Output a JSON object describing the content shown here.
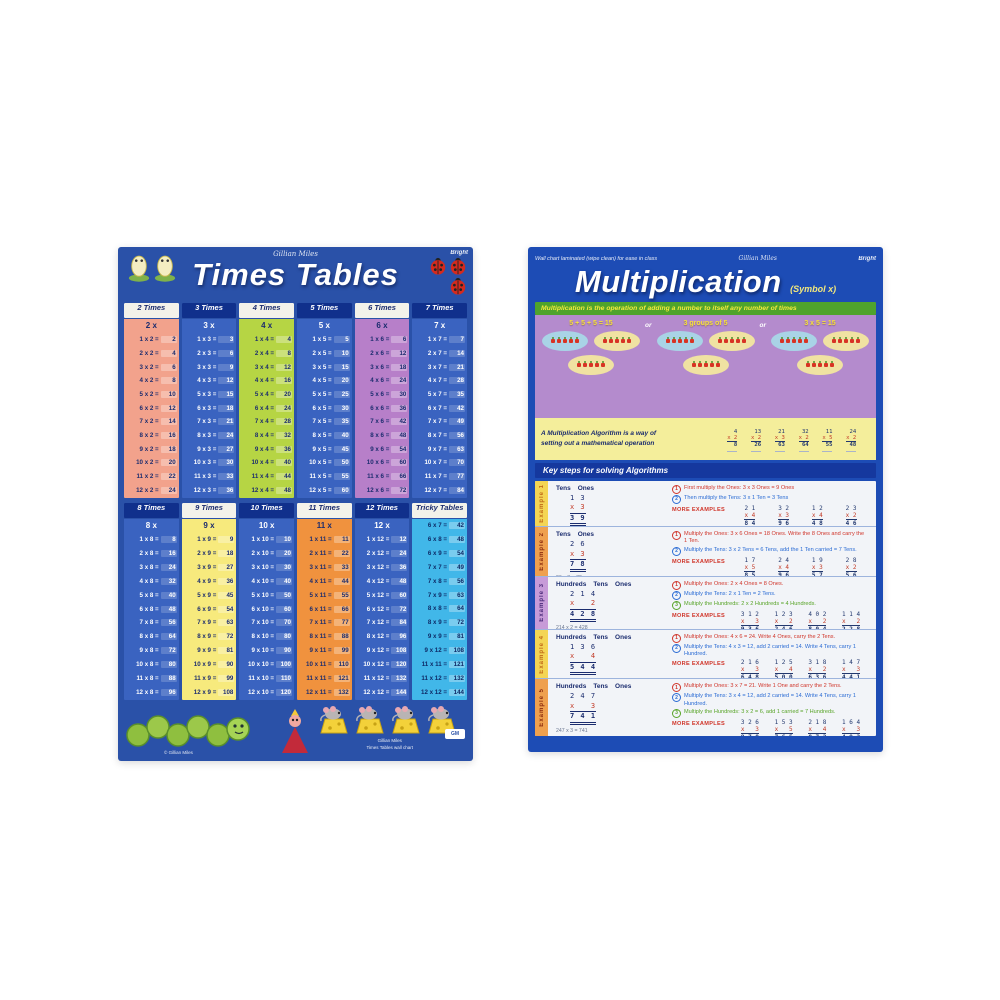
{
  "left_poster": {
    "brand_script": "Gillian Miles",
    "logo": "Bright",
    "title": "Times Tables",
    "tables_top": [
      {
        "label": "2 Times",
        "head": "2 x",
        "factor": 2,
        "scheme": "salmon",
        "products": [
          2,
          4,
          6,
          8,
          10,
          12,
          14,
          16,
          18,
          20,
          22,
          24
        ]
      },
      {
        "label": "3 Times",
        "head": "3 x",
        "factor": 3,
        "scheme": "blue",
        "products": [
          3,
          6,
          9,
          12,
          15,
          18,
          21,
          24,
          27,
          30,
          33,
          36
        ]
      },
      {
        "label": "4 Times",
        "head": "4 x",
        "factor": 4,
        "scheme": "green",
        "products": [
          4,
          8,
          12,
          16,
          20,
          24,
          28,
          32,
          36,
          40,
          44,
          48
        ]
      },
      {
        "label": "5 Times",
        "head": "5 x",
        "factor": 5,
        "scheme": "blue",
        "products": [
          5,
          10,
          15,
          20,
          25,
          30,
          35,
          40,
          45,
          50,
          55,
          60
        ]
      },
      {
        "label": "6 Times",
        "head": "6 x",
        "factor": 6,
        "scheme": "purple",
        "products": [
          6,
          12,
          18,
          24,
          30,
          36,
          42,
          48,
          54,
          60,
          66,
          72
        ]
      },
      {
        "label": "7 Times",
        "head": "7 x",
        "factor": 7,
        "scheme": "blue",
        "products": [
          7,
          14,
          21,
          28,
          35,
          42,
          49,
          56,
          63,
          70,
          77,
          84
        ]
      }
    ],
    "tables_bottom": [
      {
        "label": "8 Times",
        "head": "8 x",
        "factor": 8,
        "scheme": "blue",
        "products": [
          8,
          16,
          24,
          32,
          40,
          48,
          56,
          64,
          72,
          80,
          88,
          96
        ]
      },
      {
        "label": "9 Times",
        "head": "9 x",
        "factor": 9,
        "scheme": "yellow",
        "products": [
          9,
          18,
          27,
          36,
          45,
          54,
          63,
          72,
          81,
          90,
          99,
          108
        ]
      },
      {
        "label": "10 Times",
        "head": "10 x",
        "factor": 10,
        "scheme": "blue",
        "products": [
          10,
          20,
          30,
          40,
          50,
          60,
          70,
          80,
          90,
          100,
          110,
          120
        ]
      },
      {
        "label": "11 Times",
        "head": "11 x",
        "factor": 11,
        "scheme": "orange",
        "products": [
          11,
          22,
          33,
          44,
          55,
          66,
          77,
          88,
          99,
          110,
          121,
          132
        ]
      },
      {
        "label": "12 Times",
        "head": "12 x",
        "factor": 12,
        "scheme": "blue",
        "products": [
          12,
          24,
          36,
          48,
          60,
          72,
          84,
          96,
          108,
          120,
          132,
          144
        ]
      },
      {
        "label": "Tricky Tables",
        "head": "",
        "scheme": "cyan",
        "rows": [
          [
            "6 x 7 =",
            "42"
          ],
          [
            "6 x 8 =",
            "48"
          ],
          [
            "6 x 9 =",
            "54"
          ],
          [
            "7 x 7 =",
            "49"
          ],
          [
            "7 x 8 =",
            "56"
          ],
          [
            "7 x 9 =",
            "63"
          ],
          [
            "8 x 8 =",
            "64"
          ],
          [
            "8 x 9 =",
            "72"
          ],
          [
            "9 x 9 =",
            "81"
          ],
          [
            "9 x 12 =",
            "108"
          ],
          [
            "11 x 11 =",
            "121"
          ],
          [
            "11 x 12 =",
            "132"
          ],
          [
            "12 x 12 =",
            "144"
          ]
        ]
      }
    ],
    "footer": {
      "note_left": "© Gillian Miles",
      "credit_line1": "Gillian Miles",
      "credit_line2": "Times Tables wall chart",
      "badge": "GM"
    }
  },
  "right_poster": {
    "top_note": "Wall chart laminated (wipe clean) for ease in class",
    "brand_script": "Gillian Miles",
    "logo": "Bright",
    "title": "Multiplication",
    "title_suffix": "(Symbol x)",
    "definition": "Multiplication is the operation of adding a number to itself any number of times",
    "concept": {
      "items": [
        "5 + 5 + 5 = 15",
        "3 groups of 5",
        "3 x 5 = 15"
      ],
      "or": "or"
    },
    "algorithm_note_line1": "A Multiplication Algorithm is a way of",
    "algorithm_note_line2": "setting out a mathematical operation",
    "mini_examples": [
      [
        "  4",
        "x 2",
        "  8"
      ],
      [
        "13",
        "x 2",
        "26"
      ],
      [
        "21",
        "x 3",
        "63"
      ],
      [
        "32",
        "x 2",
        "64"
      ],
      [
        "11",
        "x 5",
        "55"
      ],
      [
        "24",
        "x 2",
        "48"
      ]
    ],
    "key_steps_title": "Key steps for solving Algorithms",
    "more_label": "MORE EXAMPLES",
    "examples": [
      {
        "label": "Example 1",
        "scheme": "yellow",
        "h": "50",
        "place_headers": [
          "Tens",
          "Ones"
        ],
        "work": [
          "1 3",
          "x 3",
          "3 9"
        ],
        "caption": "13 x 3 = 39",
        "steps": [
          {
            "n": "1",
            "color": "#d0352a",
            "text": "First multiply the Ones: 3 x 3 Ones = 9 Ones"
          },
          {
            "n": "2",
            "color": "#2a6bd4",
            "text": "Then multiply the Tens: 3 x 1 Ten = 3 Tens"
          }
        ],
        "practice": [
          [
            "2 1",
            "x 4",
            "8 4"
          ],
          [
            "3 2",
            "x 3",
            "9 6"
          ],
          [
            "1 2",
            "x 4",
            "4 8"
          ],
          [
            "2 3",
            "x 2",
            "4 6"
          ]
        ]
      },
      {
        "label": "Example 2",
        "scheme": "orange",
        "h": "62",
        "place_headers": [
          "Tens",
          "Ones"
        ],
        "work": [
          "2 6",
          "x 3",
          "7 8"
        ],
        "caption": "26 x 3 = 78",
        "steps": [
          {
            "n": "1",
            "color": "#d0352a",
            "text": "Multiply the Ones: 3 x 6 Ones = 18 Ones. Write the 8 Ones and carry the 1 Ten."
          },
          {
            "n": "2",
            "color": "#2a6bd4",
            "text": "Multiply the Tens: 3 x 2 Tens = 6 Tens, add the 1 Ten carried = 7 Tens."
          }
        ],
        "practice": [
          [
            "1 7",
            "x 5",
            "8 5"
          ],
          [
            "2 4",
            "x 4",
            "9 6"
          ],
          [
            "1 9",
            "x 3",
            "5 7"
          ],
          [
            "2 8",
            "x 2",
            "5 6"
          ]
        ]
      },
      {
        "label": "Example 3",
        "scheme": "purple",
        "h": "70",
        "place_headers": [
          "Hundreds",
          "Tens",
          "Ones"
        ],
        "work": [
          "2 1 4",
          "x   2",
          "4 2 8"
        ],
        "caption": "214 x 2 = 428",
        "steps": [
          {
            "n": "1",
            "color": "#d0352a",
            "text": "Multiply the Ones: 2 x 4 Ones = 8 Ones."
          },
          {
            "n": "2",
            "color": "#2a6bd4",
            "text": "Multiply the Tens: 2 x 1 Ten = 2 Tens."
          },
          {
            "n": "3",
            "color": "#58a428",
            "text": "Multiply the Hundreds: 2 x 2 Hundreds = 4 Hundreds."
          }
        ],
        "practice": [
          [
            "3 1 2",
            "x   3",
            "9 3 6"
          ],
          [
            "1 2 3",
            "x   2",
            "2 4 6"
          ],
          [
            "4 0 2",
            "x   2",
            "8 0 4"
          ],
          [
            "1 1 4",
            "x   2",
            "2 2 8"
          ]
        ]
      },
      {
        "label": "Example 4",
        "scheme": "yellow",
        "h": "52",
        "place_headers": [
          "Hundreds",
          "Tens",
          "Ones"
        ],
        "work": [
          "1 3 6",
          "x   4",
          "5 4 4"
        ],
        "caption": "136 x 4 = 544",
        "steps": [
          {
            "n": "1",
            "color": "#d0352a",
            "text": "Multiply the Ones: 4 x 6 = 24. Write 4 Ones, carry the 2 Tens."
          },
          {
            "n": "2",
            "color": "#2a6bd4",
            "text": "Multiply the Tens: 4 x 3 = 12, add 2 carried = 14. Write 4 Tens, carry 1 Hundred."
          }
        ],
        "practice": [
          [
            "2 1 6",
            "x   3",
            "6 4 8"
          ],
          [
            "1 2 5",
            "x   4",
            "5 0 0"
          ],
          [
            "3 1 8",
            "x   2",
            "6 3 6"
          ],
          [
            "1 4 7",
            "x   3",
            "4 4 1"
          ]
        ]
      },
      {
        "label": "Example 5",
        "scheme": "orange",
        "h": "74",
        "place_headers": [
          "Hundreds",
          "Tens",
          "Ones"
        ],
        "work": [
          "2 4 7",
          "x   3",
          "7 4 1"
        ],
        "caption": "247 x 3 = 741",
        "steps": [
          {
            "n": "1",
            "color": "#d0352a",
            "text": "Multiply the Ones: 3 x 7 = 21. Write 1 One and carry the 2 Tens."
          },
          {
            "n": "2",
            "color": "#2a6bd4",
            "text": "Multiply the Tens: 3 x 4 = 12, add 2 carried = 14. Write 4 Tens, carry 1 Hundred."
          },
          {
            "n": "3",
            "color": "#58a428",
            "text": "Multiply the Hundreds: 3 x 2 = 6, add 1 carried = 7 Hundreds."
          }
        ],
        "practice": [
          [
            "3 2 6",
            "x   3",
            "9 7 8"
          ],
          [
            "1 5 3",
            "x   5",
            "7 6 5"
          ],
          [
            "2 1 8",
            "x   4",
            "8 7 2"
          ],
          [
            "1 6 4",
            "x   3",
            "4 9 2"
          ]
        ]
      }
    ]
  }
}
